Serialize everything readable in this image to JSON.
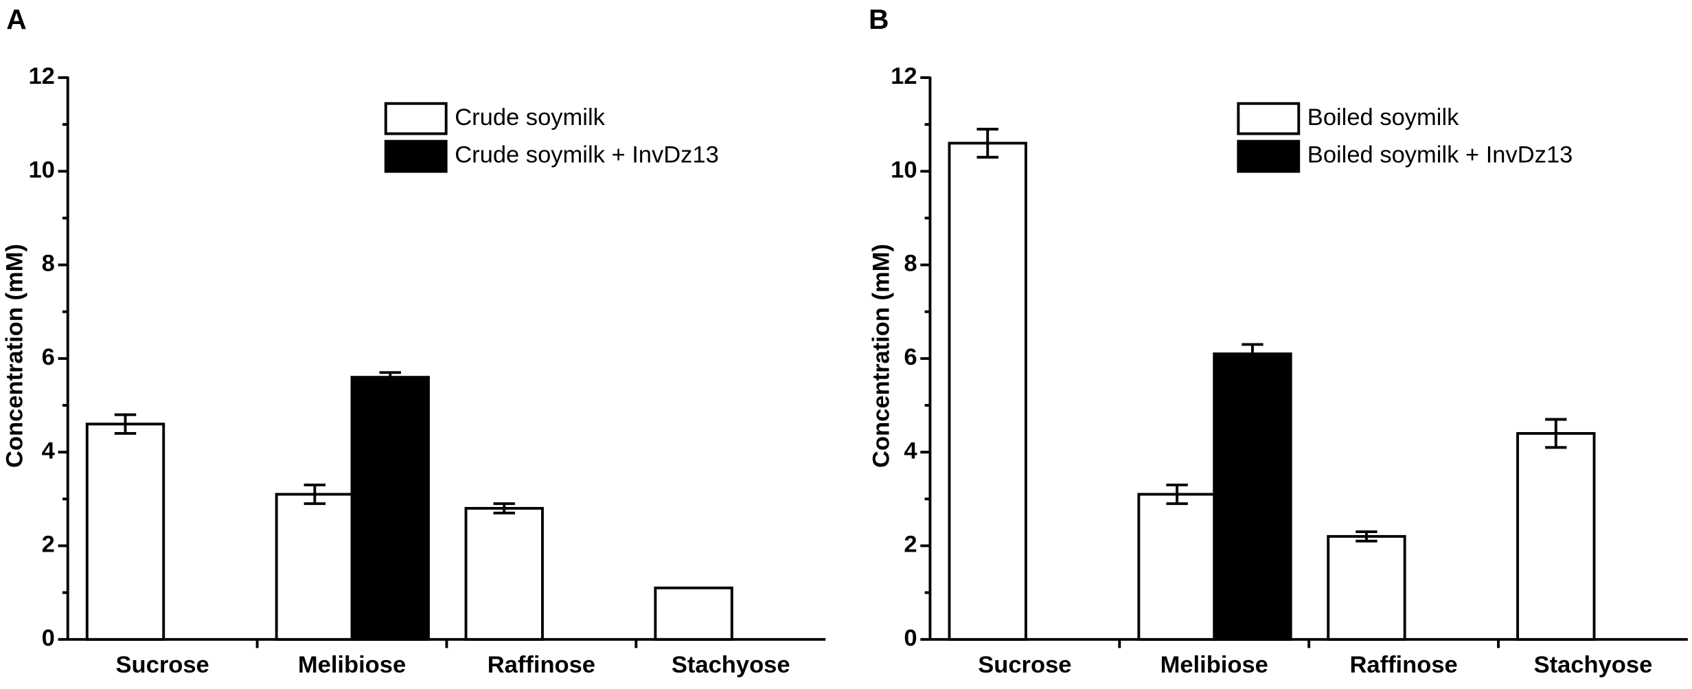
{
  "chart_data": [
    {
      "type": "bar",
      "panel_label": "A",
      "ylabel": "Concentration (mM)",
      "categories": [
        "Sucrose",
        "Melibiose",
        "Raffinose",
        "Stachyose"
      ],
      "series": [
        {
          "name": "Crude soymilk",
          "color": "#ffffff",
          "values": [
            4.6,
            3.1,
            2.8,
            1.1
          ],
          "errors": [
            0.2,
            0.2,
            0.1,
            null
          ]
        },
        {
          "name": "Crude soymilk + InvDz13",
          "color": "#000000",
          "values": [
            null,
            5.6,
            null,
            null
          ],
          "errors": [
            null,
            0.1,
            null,
            null
          ]
        }
      ],
      "ylim": [
        0,
        12
      ],
      "yticks": [
        0,
        2,
        4,
        6,
        8,
        10,
        12
      ]
    },
    {
      "type": "bar",
      "panel_label": "B",
      "ylabel": "Concentration (mM)",
      "categories": [
        "Sucrose",
        "Melibiose",
        "Raffinose",
        "Stachyose"
      ],
      "series": [
        {
          "name": "Boiled soymilk",
          "color": "#ffffff",
          "values": [
            10.6,
            3.1,
            2.2,
            4.4
          ],
          "errors": [
            0.3,
            0.2,
            0.1,
            0.3
          ]
        },
        {
          "name": "Boiled soymilk + InvDz13",
          "color": "#000000",
          "values": [
            null,
            6.1,
            null,
            null
          ],
          "errors": [
            null,
            0.2,
            null,
            null
          ]
        }
      ],
      "ylim": [
        0,
        12
      ],
      "yticks": [
        0,
        2,
        4,
        6,
        8,
        10,
        12
      ]
    }
  ]
}
